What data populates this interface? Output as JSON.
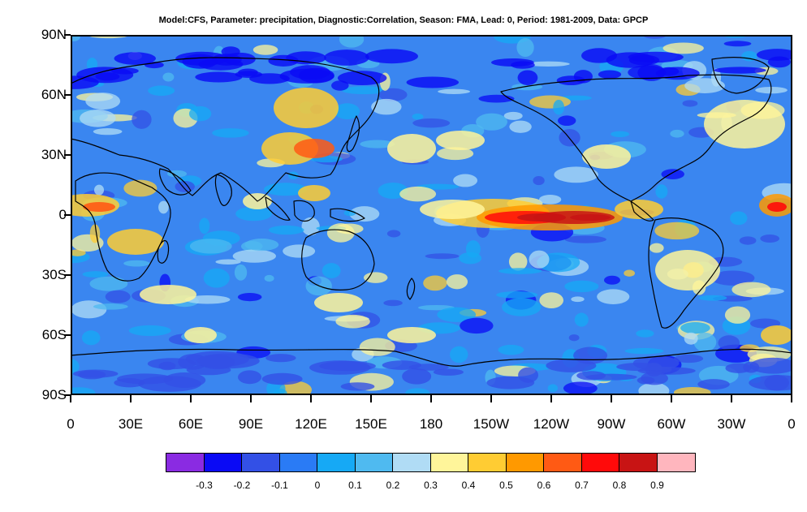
{
  "title": "Model:CFS, Parameter: precipitation, Diagnostic:Correlation, Season:  FMA, Lead:  0, Period: 1981-2009, Data: GPCP",
  "map": {
    "projection": "cylindrical-equidistant",
    "central_longitude": 180,
    "lat_labels": [
      "90N",
      "60N",
      "30N",
      "0",
      "30S",
      "60S",
      "90S"
    ],
    "lon_labels": [
      "0",
      "30E",
      "60E",
      "90E",
      "120E",
      "150E",
      "180",
      "150W",
      "120W",
      "90W",
      "60W",
      "30W",
      "0"
    ],
    "field_description": "correlation of precipitation, CFS vs GPCP"
  },
  "colorbar": {
    "labels": [
      "-0.3",
      "-0.2",
      "-0.1",
      "0",
      "0.1",
      "0.2",
      "0.3",
      "0.4",
      "0.5",
      "0.6",
      "0.7",
      "0.8",
      "0.9"
    ],
    "colors": [
      "#8a2be2",
      "#0a0af5",
      "#3350e6",
      "#2a7bf5",
      "#16a9f5",
      "#4fbaf0",
      "#b0dcf5",
      "#fff59a",
      "#ffcc33",
      "#ff9900",
      "#ff5a14",
      "#ff0a0a",
      "#c81414",
      "#ffb6be"
    ]
  }
}
